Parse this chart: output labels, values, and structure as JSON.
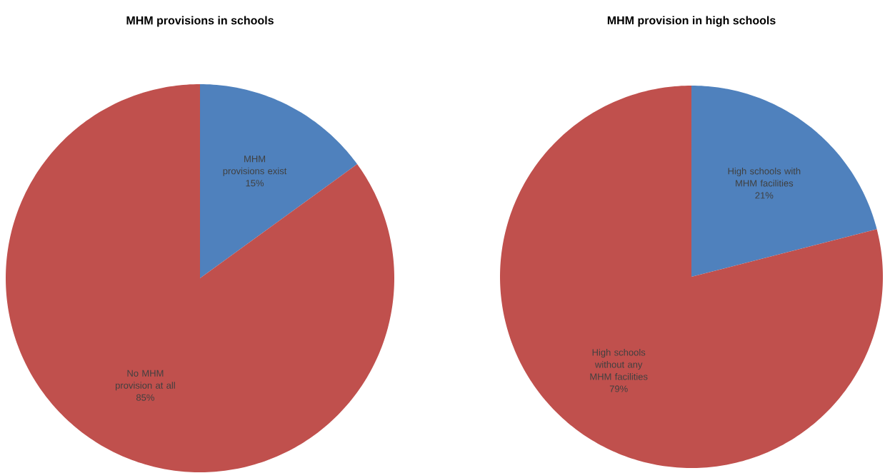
{
  "chart_data": [
    {
      "type": "pie",
      "title": "MHM provisions in schools",
      "categories": [
        "MHM provisions exist",
        "No MHM provision at all"
      ],
      "values": [
        15,
        85
      ],
      "colors": [
        "#4f81bd",
        "#c0504d"
      ],
      "value_labels": [
        "15%",
        "85%"
      ]
    },
    {
      "type": "pie",
      "title": "MHM provision in high schools",
      "categories": [
        "High schools with MHM facilities",
        "High schools without any MHM facilities"
      ],
      "values": [
        21,
        79
      ],
      "colors": [
        "#4f81bd",
        "#c0504d"
      ],
      "value_labels": [
        "21%",
        "79%"
      ]
    }
  ]
}
